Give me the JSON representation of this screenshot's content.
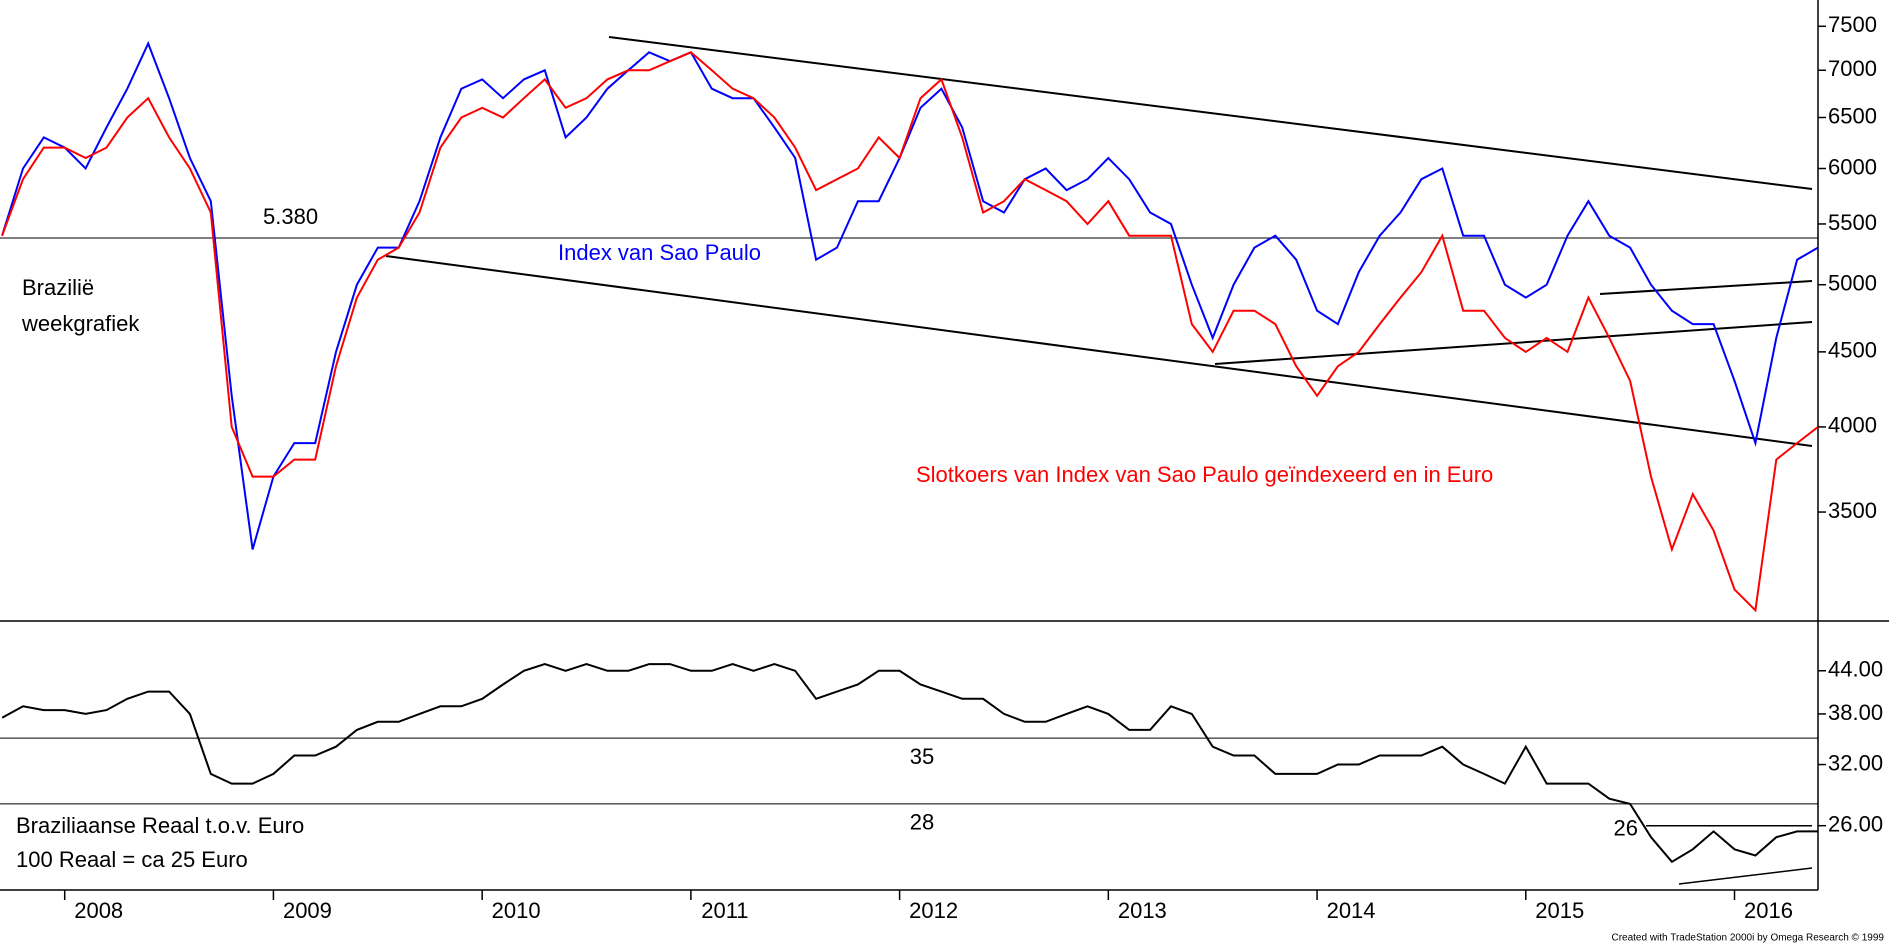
{
  "chart_data": [
    {
      "type": "line",
      "annotations": [
        "Brazilië",
        "weekgrafiek"
      ],
      "x": [
        2007.7,
        2007.8,
        2007.9,
        2008.0,
        2008.1,
        2008.2,
        2008.3,
        2008.4,
        2008.5,
        2008.6,
        2008.7,
        2008.8,
        2008.9,
        2009.0,
        2009.1,
        2009.2,
        2009.3,
        2009.4,
        2009.5,
        2009.6,
        2009.7,
        2009.8,
        2009.9,
        2010.0,
        2010.1,
        2010.2,
        2010.3,
        2010.4,
        2010.5,
        2010.6,
        2010.7,
        2010.8,
        2010.9,
        2011.0,
        2011.1,
        2011.2,
        2011.3,
        2011.4,
        2011.5,
        2011.6,
        2011.7,
        2011.8,
        2011.9,
        2012.0,
        2012.1,
        2012.2,
        2012.3,
        2012.4,
        2012.5,
        2012.6,
        2012.7,
        2012.8,
        2012.9,
        2013.0,
        2013.1,
        2013.2,
        2013.3,
        2013.4,
        2013.5,
        2013.6,
        2013.7,
        2013.8,
        2013.9,
        2014.0,
        2014.1,
        2014.2,
        2014.3,
        2014.4,
        2014.5,
        2014.6,
        2014.7,
        2014.8,
        2014.9,
        2015.0,
        2015.1,
        2015.2,
        2015.3,
        2015.4,
        2015.5,
        2015.6,
        2015.7,
        2015.8,
        2015.9,
        2016.0,
        2016.1,
        2016.2,
        2016.3,
        2016.4
      ],
      "series": [
        {
          "name": "Index van Sao Paulo",
          "color": "#0000ff",
          "values": [
            5400,
            6000,
            6300,
            6200,
            6000,
            6400,
            6800,
            7300,
            6700,
            6100,
            5700,
            4200,
            3300,
            3700,
            3900,
            3900,
            4500,
            5000,
            5300,
            5300,
            5700,
            6300,
            6800,
            6900,
            6700,
            6900,
            7000,
            6300,
            6500,
            6800,
            7000,
            7200,
            7100,
            7200,
            6800,
            6700,
            6700,
            6400,
            6100,
            5200,
            5300,
            5700,
            5700,
            6100,
            6600,
            6800,
            6400,
            5700,
            5600,
            5900,
            6000,
            5800,
            5900,
            6100,
            5900,
            5600,
            5500,
            5000,
            4600,
            5000,
            5300,
            5400,
            5200,
            4800,
            4700,
            5100,
            5400,
            5600,
            5900,
            6000,
            5400,
            5400,
            5000,
            4900,
            5000,
            5400,
            5700,
            5400,
            5300,
            5000,
            4800,
            4700,
            4700,
            4300,
            3900,
            4600,
            5200,
            5300
          ]
        },
        {
          "name": "Slotkoers van Index van Sao Paulo geïndexeerd en in Euro",
          "color": "#ff0000",
          "values": [
            5400,
            5900,
            6200,
            6200,
            6100,
            6200,
            6500,
            6700,
            6300,
            6000,
            5600,
            4000,
            3700,
            3700,
            3800,
            3800,
            4400,
            4900,
            5200,
            5300,
            5600,
            6200,
            6500,
            6600,
            6500,
            6700,
            6900,
            6600,
            6700,
            6900,
            7000,
            7000,
            7100,
            7200,
            7000,
            6800,
            6700,
            6500,
            6200,
            5800,
            5900,
            6000,
            6300,
            6100,
            6700,
            6900,
            6300,
            5600,
            5700,
            5900,
            5800,
            5700,
            5500,
            5700,
            5400,
            5400,
            5400,
            4700,
            4500,
            4800,
            4800,
            4700,
            4400,
            4200,
            4400,
            4500,
            4700,
            4900,
            5100,
            5400,
            4800,
            4800,
            4600,
            4500,
            4600,
            4500,
            4900,
            4600,
            4300,
            3700,
            3300,
            3600,
            3400,
            3100,
            3000,
            3800,
            3900,
            4000
          ]
        }
      ],
      "xlim": [
        2007.69,
        2016.4
      ],
      "ylim": [
        2950,
        7670
      ],
      "log_y": true,
      "yticks": [
        3500,
        4000,
        4500,
        5000,
        5500,
        6000,
        6500,
        7000,
        7500
      ],
      "reference_lines": [
        {
          "value": 5380,
          "label": "5.380"
        }
      ]
    },
    {
      "type": "line",
      "annotations": [
        "100 Reaal = ca 25 Euro"
      ],
      "x": [
        2007.7,
        2007.8,
        2007.9,
        2008.0,
        2008.1,
        2008.2,
        2008.3,
        2008.4,
        2008.5,
        2008.6,
        2008.7,
        2008.8,
        2008.9,
        2009.0,
        2009.1,
        2009.2,
        2009.3,
        2009.4,
        2009.5,
        2009.6,
        2009.7,
        2009.8,
        2009.9,
        2010.0,
        2010.1,
        2010.2,
        2010.3,
        2010.4,
        2010.5,
        2010.6,
        2010.7,
        2010.8,
        2010.9,
        2011.0,
        2011.1,
        2011.2,
        2011.3,
        2011.4,
        2011.5,
        2011.6,
        2011.7,
        2011.8,
        2011.9,
        2012.0,
        2012.1,
        2012.2,
        2012.3,
        2012.4,
        2012.5,
        2012.6,
        2012.7,
        2012.8,
        2012.9,
        2013.0,
        2013.1,
        2013.2,
        2013.3,
        2013.4,
        2013.5,
        2013.6,
        2013.7,
        2013.8,
        2013.9,
        2014.0,
        2014.1,
        2014.2,
        2014.3,
        2014.4,
        2014.5,
        2014.6,
        2014.7,
        2014.8,
        2014.9,
        2015.0,
        2015.1,
        2015.2,
        2015.3,
        2015.4,
        2015.5,
        2015.6,
        2015.7,
        2015.8,
        2015.9,
        2016.0,
        2016.1,
        2016.2,
        2016.3,
        2016.4
      ],
      "series": [
        {
          "name": "Braziliaanse Reaal t.o.v. Euro",
          "color": "#000000",
          "values": [
            37.5,
            39,
            38.5,
            38.5,
            38,
            38.5,
            40,
            41,
            41,
            38,
            31,
            30,
            30,
            31,
            33,
            33,
            34,
            36,
            37,
            37,
            38,
            39,
            39,
            40,
            42,
            44,
            45,
            44,
            45,
            44,
            44,
            45,
            45,
            44,
            44,
            45,
            44,
            45,
            44,
            40,
            41,
            42,
            44,
            44,
            42,
            41,
            40,
            40,
            38,
            37,
            37,
            38,
            39,
            38,
            36,
            36,
            39,
            38,
            34,
            33,
            33,
            31,
            31,
            31,
            32,
            32,
            33,
            33,
            33,
            34,
            32,
            31,
            30,
            34,
            30,
            30,
            30,
            28.5,
            28,
            25,
            23,
            24,
            25.5,
            24,
            23.5,
            25,
            25.5,
            25.5
          ]
        }
      ],
      "xlim": [
        2007.69,
        2016.4
      ],
      "xticks": [
        2008,
        2009,
        2010,
        2011,
        2012,
        2013,
        2014,
        2015,
        2016
      ],
      "ylim": [
        20.9,
        52.1
      ],
      "log_y": true,
      "yticks": [
        {
          "value": 26,
          "label": "26.00"
        },
        {
          "value": 32,
          "label": "32.00"
        },
        {
          "value": 38,
          "label": "38.00"
        },
        {
          "value": 44,
          "label": "44.00"
        }
      ],
      "reference_lines": [
        {
          "value": 35,
          "label": "35"
        },
        {
          "value": 28,
          "label": "28"
        }
      ],
      "level_markers": [
        {
          "value": 26,
          "label": "26"
        }
      ]
    }
  ],
  "footer": "Created with TradeStation 2000i by Omega Research © 1999"
}
